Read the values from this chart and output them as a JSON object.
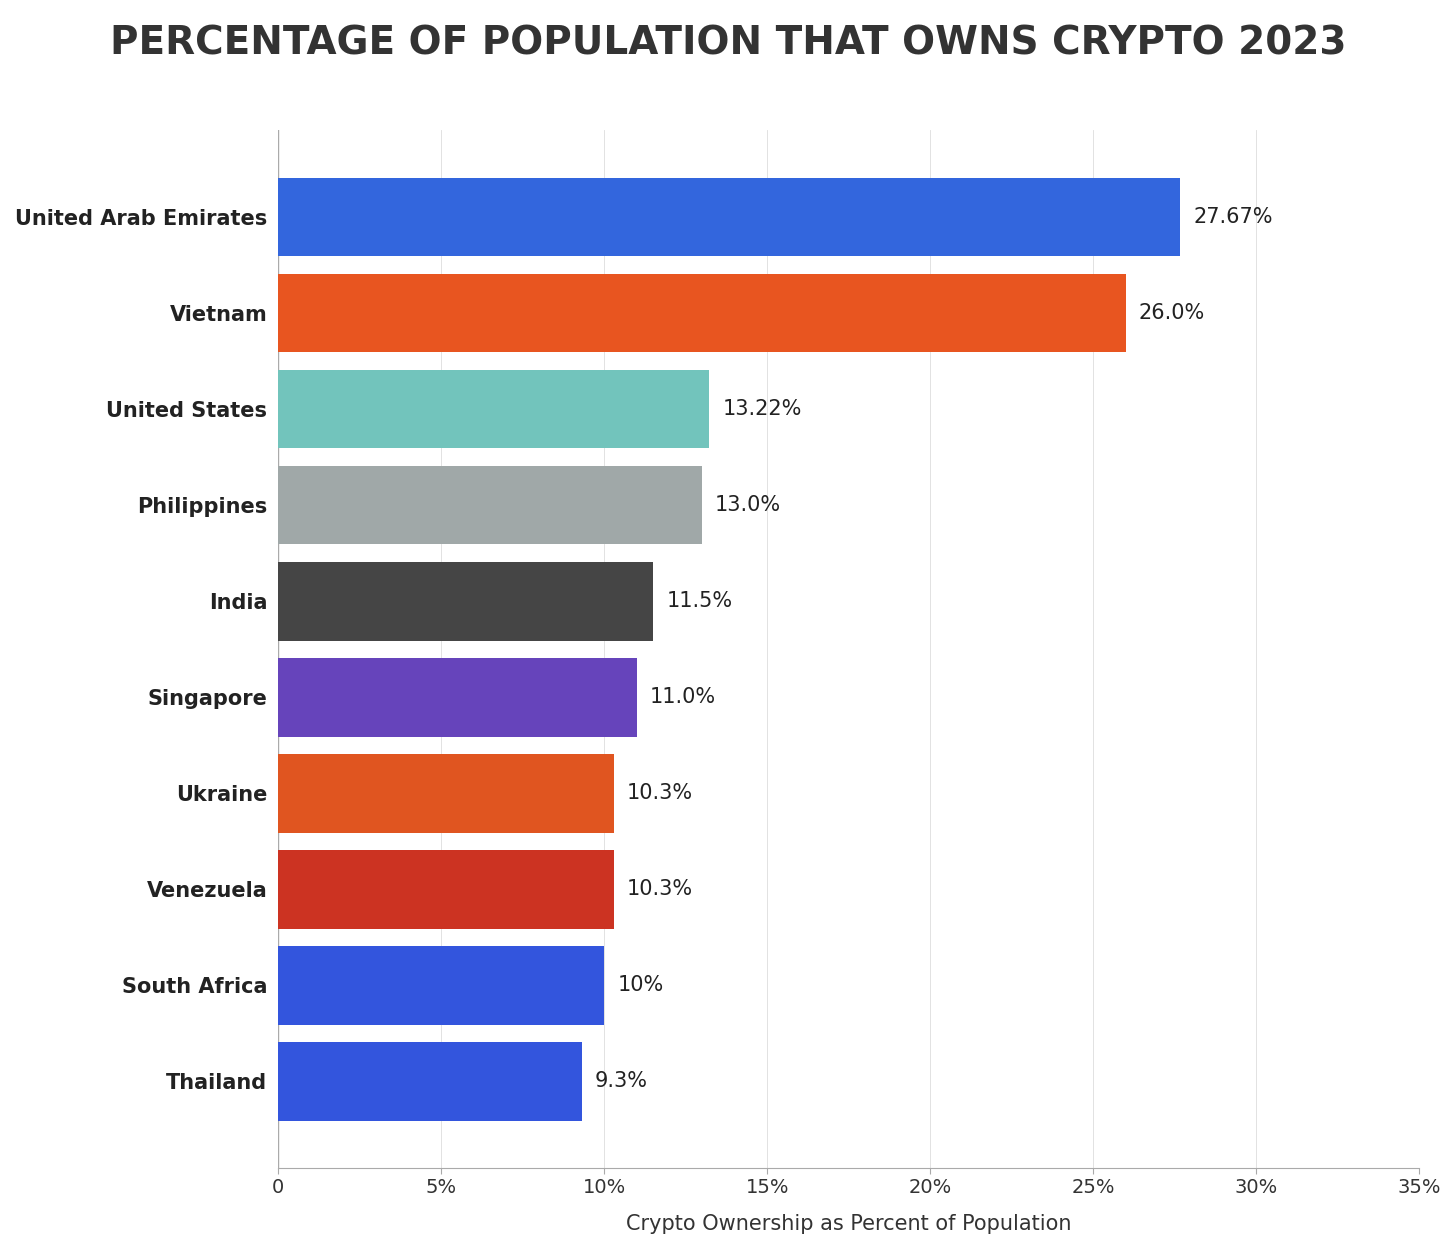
{
  "title": "PERCENTAGE OF POPULATION THAT OWNS CRYPTO 2023",
  "xlabel": "Crypto Ownership as Percent of Population",
  "categories": [
    "United Arab Emirates",
    "Vietnam",
    "United States",
    "Philippines",
    "India",
    "Singapore",
    "Ukraine",
    "Venezuela",
    "South Africa",
    "Thailand"
  ],
  "values": [
    27.67,
    26.0,
    13.22,
    13.0,
    11.5,
    11.0,
    10.3,
    10.3,
    10.0,
    9.3
  ],
  "labels": [
    "27.67%",
    "26.0%",
    "13.22%",
    "13.0%",
    "11.5%",
    "11.0%",
    "10.3%",
    "10.3%",
    "10%",
    "9.3%"
  ],
  "bar_colors": [
    "#3366dd",
    "#e85520",
    "#72c4bc",
    "#a0a8a8",
    "#454545",
    "#6644bb",
    "#e05520",
    "#cc3322",
    "#3355dd",
    "#3355dd"
  ],
  "xlim": [
    0,
    35
  ],
  "xticks": [
    0,
    5,
    10,
    15,
    20,
    25,
    30,
    35
  ],
  "xtick_labels": [
    "0",
    "5%",
    "10%",
    "15%",
    "20%",
    "25%",
    "30%",
    "35%"
  ],
  "background_color": "#ffffff",
  "title_fontsize": 28,
  "label_fontsize": 15,
  "tick_fontsize": 14,
  "xlabel_fontsize": 15,
  "title_color": "#333333"
}
